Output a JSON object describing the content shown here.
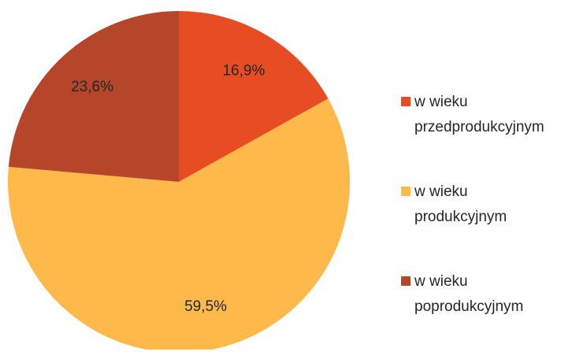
{
  "chart_data": {
    "type": "pie",
    "categories": [
      "w wieku przedprodukcyjnym",
      "w wieku produkcyjnym",
      "w wieku poprodukcyjnym"
    ],
    "values": [
      16.9,
      59.5,
      23.6
    ],
    "value_labels": [
      "16,9%",
      "59,5%",
      "23,6%"
    ],
    "colors": [
      "#E84C22",
      "#FFB84A",
      "#B5462A"
    ],
    "legend": "right"
  }
}
